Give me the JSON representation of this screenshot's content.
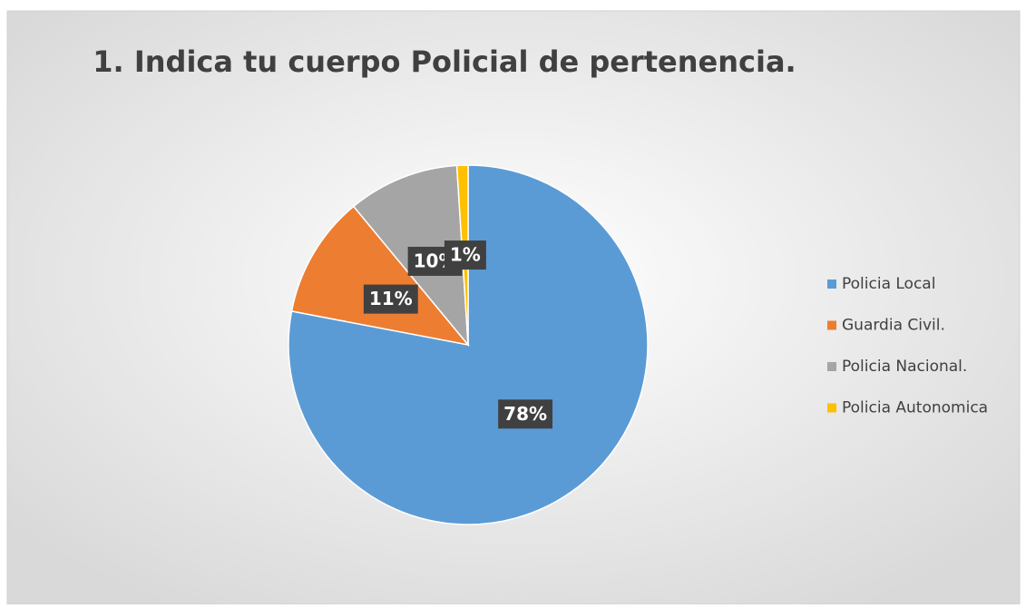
{
  "chart_data": {
    "type": "pie",
    "title": "1. Indica tu cuerpo Policial de pertenencia.",
    "categories": [
      "Policia Local",
      "Guardia Civil.",
      "Policia Nacional.",
      "Policia Autonomica"
    ],
    "values": [
      78,
      11,
      10,
      1
    ],
    "value_labels": [
      "78%",
      "11%",
      "10%",
      "1%"
    ],
    "colors": [
      "#5b9bd5",
      "#ed7d31",
      "#a5a5a5",
      "#ffc000"
    ],
    "legend": "right"
  }
}
